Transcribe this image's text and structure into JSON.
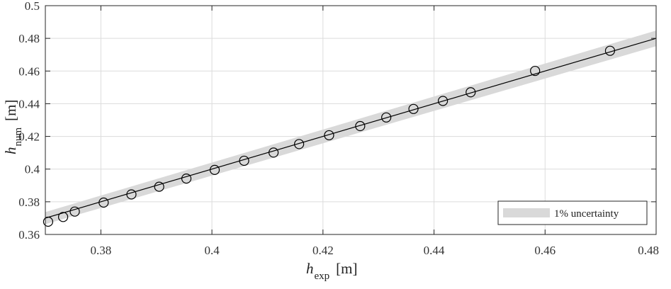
{
  "chart_data": {
    "type": "scatter",
    "title": "",
    "xlabel": {
      "main": "h",
      "sub": "exp",
      "unit": "[m]"
    },
    "ylabel": {
      "main": "h",
      "sub": "num",
      "unit": "[m]"
    },
    "xlim": [
      0.37,
      0.48
    ],
    "ylim": [
      0.36,
      0.5
    ],
    "xticks": [
      0.38,
      0.4,
      0.42,
      0.44,
      0.46,
      0.48
    ],
    "xtick_labels": [
      "0.38",
      "0.4",
      "0.42",
      "0.44",
      "0.46",
      "0.48"
    ],
    "yticks": [
      0.36,
      0.38,
      0.4,
      0.42,
      0.44,
      0.46,
      0.48,
      0.5
    ],
    "ytick_labels": [
      "0.36",
      "0.38",
      "0.4",
      "0.42",
      "0.44",
      "0.46",
      "0.48",
      "0.5"
    ],
    "grid": true,
    "series": [
      {
        "kind": "points",
        "marker": "circle",
        "x": [
          0.3705,
          0.3732,
          0.3753,
          0.3805,
          0.3855,
          0.3905,
          0.3954,
          0.4005,
          0.4058,
          0.4111,
          0.4157,
          0.4211,
          0.4267,
          0.4314,
          0.4363,
          0.4416,
          0.4466,
          0.4582,
          0.4717
        ],
        "y": [
          0.3678,
          0.3707,
          0.374,
          0.3795,
          0.3845,
          0.3892,
          0.3942,
          0.3995,
          0.4051,
          0.4101,
          0.4153,
          0.4207,
          0.4263,
          0.4316,
          0.4368,
          0.4417,
          0.447,
          0.4601,
          0.4724
        ]
      },
      {
        "kind": "line",
        "x": [
          0.37,
          0.48
        ],
        "y": [
          0.37,
          0.48
        ]
      },
      {
        "kind": "band",
        "name": "1% uncertainty",
        "relative": 0.01
      }
    ],
    "legend": {
      "position": "bottom-right",
      "entries": [
        "1% uncertainty"
      ]
    },
    "colors": {
      "band": "#d9d9d9",
      "line": "#000000",
      "marker": "#000000",
      "grid": "#dcdcdc"
    }
  }
}
